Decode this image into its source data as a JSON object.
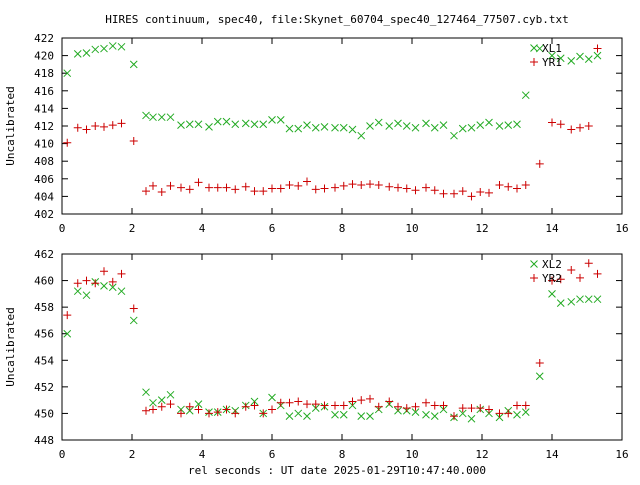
{
  "title": "HIRES continuum, spec40, file:Skynet_60704_spec40_127464_77507.cyb.txt",
  "xlabel": "rel seconds : UT date 2025-01-29T10:47:40.000",
  "colors": {
    "red_series": "#cc0000",
    "green_series": "#22aa22",
    "axis": "#000000"
  },
  "chart_data": [
    {
      "type": "scatter",
      "ylabel": "Uncalibrated",
      "xlim": [
        0,
        16
      ],
      "ylim": [
        402,
        422
      ],
      "xticks": [
        0,
        2,
        4,
        6,
        8,
        10,
        12,
        14,
        16
      ],
      "yticks": [
        402,
        404,
        406,
        408,
        410,
        412,
        414,
        416,
        418,
        420,
        422
      ],
      "legend_position": "top-right",
      "series": [
        {
          "name": "XL1",
          "marker": "x",
          "color": "#22aa22",
          "x": [
            0.15,
            0.45,
            0.7,
            0.95,
            1.2,
            1.45,
            1.7,
            2.05,
            2.4,
            2.6,
            2.85,
            3.1,
            3.4,
            3.65,
            3.9,
            4.2,
            4.45,
            4.7,
            4.95,
            5.25,
            5.5,
            5.75,
            6.0,
            6.25,
            6.5,
            6.75,
            7.0,
            7.25,
            7.5,
            7.8,
            8.05,
            8.3,
            8.55,
            8.8,
            9.05,
            9.35,
            9.6,
            9.85,
            10.1,
            10.4,
            10.65,
            10.9,
            11.2,
            11.45,
            11.7,
            11.95,
            12.2,
            12.5,
            12.75,
            13.0,
            13.25,
            13.65,
            14.0,
            14.25,
            14.55,
            14.8,
            15.05,
            15.3
          ],
          "y": [
            418.0,
            420.2,
            420.3,
            420.7,
            420.8,
            421.1,
            421.0,
            419.0,
            413.2,
            413.0,
            413.0,
            413.0,
            412.1,
            412.2,
            412.2,
            411.9,
            412.5,
            412.5,
            412.2,
            412.3,
            412.2,
            412.2,
            412.7,
            412.7,
            411.7,
            411.7,
            412.1,
            411.8,
            411.9,
            411.8,
            411.8,
            411.6,
            410.9,
            412.0,
            412.4,
            412.0,
            412.3,
            412.0,
            411.8,
            412.3,
            411.8,
            412.1,
            410.9,
            411.7,
            411.8,
            412.1,
            412.4,
            412.0,
            412.1,
            412.2,
            415.5,
            420.8,
            420.0,
            419.7,
            419.4,
            419.9,
            419.6,
            420.0
          ]
        },
        {
          "name": "YR1",
          "marker": "+",
          "color": "#cc0000",
          "x": [
            0.15,
            0.45,
            0.7,
            0.95,
            1.2,
            1.45,
            1.7,
            2.05,
            2.4,
            2.6,
            2.85,
            3.1,
            3.4,
            3.65,
            3.9,
            4.2,
            4.45,
            4.7,
            4.95,
            5.25,
            5.5,
            5.75,
            6.0,
            6.25,
            6.5,
            6.75,
            7.0,
            7.25,
            7.5,
            7.8,
            8.05,
            8.3,
            8.55,
            8.8,
            9.05,
            9.35,
            9.6,
            9.85,
            10.1,
            10.4,
            10.65,
            10.9,
            11.2,
            11.45,
            11.7,
            11.95,
            12.2,
            12.5,
            12.75,
            13.0,
            13.25,
            13.65,
            14.0,
            14.25,
            14.55,
            14.8,
            15.05,
            15.3
          ],
          "y": [
            410.1,
            411.8,
            411.6,
            412.0,
            411.9,
            412.1,
            412.3,
            410.3,
            404.6,
            405.2,
            404.5,
            405.2,
            405.0,
            404.8,
            405.6,
            405.0,
            405.0,
            405.0,
            404.8,
            405.1,
            404.6,
            404.6,
            404.9,
            404.9,
            405.3,
            405.2,
            405.7,
            404.8,
            404.9,
            405.0,
            405.2,
            405.4,
            405.3,
            405.4,
            405.3,
            405.1,
            405.0,
            404.9,
            404.7,
            405.0,
            404.7,
            404.3,
            404.3,
            404.6,
            404.0,
            404.5,
            404.4,
            405.3,
            405.1,
            404.9,
            405.3,
            407.7,
            412.4,
            412.2,
            411.6,
            411.8,
            412.0,
            420.8
          ]
        }
      ]
    },
    {
      "type": "scatter",
      "ylabel": "Uncalibrated",
      "xlim": [
        0,
        16
      ],
      "ylim": [
        448,
        462
      ],
      "xticks": [
        0,
        2,
        4,
        6,
        8,
        10,
        12,
        14,
        16
      ],
      "yticks": [
        448,
        450,
        452,
        454,
        456,
        458,
        460,
        462
      ],
      "legend_position": "top-right",
      "series": [
        {
          "name": "XL2",
          "marker": "x",
          "color": "#22aa22",
          "x": [
            0.15,
            0.45,
            0.7,
            0.95,
            1.2,
            1.45,
            1.7,
            2.05,
            2.4,
            2.6,
            2.85,
            3.1,
            3.4,
            3.65,
            3.9,
            4.2,
            4.45,
            4.7,
            4.95,
            5.25,
            5.5,
            5.75,
            6.0,
            6.25,
            6.5,
            6.75,
            7.0,
            7.25,
            7.5,
            7.8,
            8.05,
            8.3,
            8.55,
            8.8,
            9.05,
            9.35,
            9.6,
            9.85,
            10.1,
            10.4,
            10.65,
            10.9,
            11.2,
            11.45,
            11.7,
            11.95,
            12.2,
            12.5,
            12.75,
            13.0,
            13.25,
            13.65,
            14.0,
            14.25,
            14.55,
            14.8,
            15.05,
            15.3
          ],
          "y": [
            456.0,
            459.2,
            458.9,
            459.9,
            459.6,
            459.5,
            459.2,
            457.0,
            451.6,
            450.8,
            451.0,
            451.4,
            450.3,
            450.2,
            450.7,
            450.1,
            450.1,
            450.3,
            450.2,
            450.6,
            450.9,
            450.0,
            451.2,
            450.6,
            449.8,
            450.0,
            449.8,
            450.4,
            450.5,
            449.9,
            449.9,
            450.6,
            449.8,
            449.8,
            450.3,
            450.7,
            450.2,
            450.2,
            450.1,
            449.9,
            449.8,
            450.3,
            449.7,
            450.0,
            449.6,
            450.3,
            450.0,
            449.7,
            450.2,
            449.9,
            450.1,
            452.8,
            459.0,
            458.3,
            458.4,
            458.6,
            458.6,
            458.6
          ]
        },
        {
          "name": "YR2",
          "marker": "+",
          "color": "#cc0000",
          "x": [
            0.15,
            0.45,
            0.7,
            0.95,
            1.2,
            1.45,
            1.7,
            2.05,
            2.4,
            2.6,
            2.85,
            3.1,
            3.4,
            3.65,
            3.9,
            4.2,
            4.45,
            4.7,
            4.95,
            5.25,
            5.5,
            5.75,
            6.0,
            6.25,
            6.5,
            6.75,
            7.0,
            7.25,
            7.5,
            7.8,
            8.05,
            8.3,
            8.55,
            8.8,
            9.05,
            9.35,
            9.6,
            9.85,
            10.1,
            10.4,
            10.65,
            10.9,
            11.2,
            11.45,
            11.7,
            11.95,
            12.2,
            12.5,
            12.75,
            13.0,
            13.25,
            13.65,
            14.0,
            14.25,
            14.55,
            14.8,
            15.05,
            15.3
          ],
          "y": [
            457.4,
            459.8,
            460.0,
            459.8,
            460.7,
            459.9,
            460.5,
            457.9,
            450.2,
            450.3,
            450.5,
            450.7,
            450.0,
            450.5,
            450.3,
            450.0,
            450.1,
            450.3,
            450.0,
            450.5,
            450.6,
            450.0,
            450.3,
            450.8,
            450.8,
            450.9,
            450.7,
            450.7,
            450.6,
            450.6,
            450.6,
            450.9,
            451.0,
            451.1,
            450.5,
            450.9,
            450.5,
            450.4,
            450.5,
            450.8,
            450.6,
            450.6,
            449.8,
            450.4,
            450.4,
            450.4,
            450.3,
            450.0,
            450.0,
            450.6,
            450.6,
            453.8,
            460.0,
            460.1,
            460.8,
            460.2,
            461.3,
            460.5
          ]
        }
      ]
    }
  ]
}
